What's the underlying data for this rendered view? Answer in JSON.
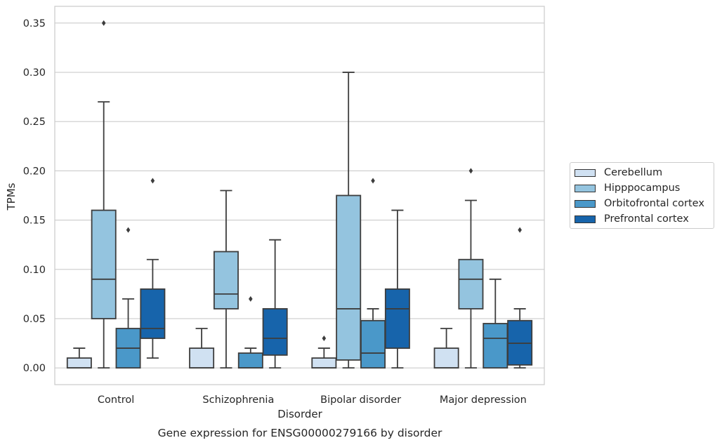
{
  "chart_data": {
    "type": "box",
    "title": "Gene expression for ENSG00000279166 by disorder",
    "xlabel": "Disorder",
    "ylabel": "TPMs",
    "ylim": [
      -0.017,
      0.367
    ],
    "yticks": [
      "0.00",
      "0.05",
      "0.10",
      "0.15",
      "0.20",
      "0.25",
      "0.30",
      "0.35"
    ],
    "grid": "horizontal",
    "legend_position": "right",
    "categories": [
      "Control",
      "Schizophrenia",
      "Bipolar disorder",
      "Major depression"
    ],
    "series": [
      {
        "name": "Cerebellum",
        "color": "#d0e1f2",
        "boxes": [
          {
            "q1": 0.0,
            "median": 0.0,
            "q3": 0.01,
            "whisker_low": 0.0,
            "whisker_high": 0.02,
            "outliers": []
          },
          {
            "q1": 0.0,
            "median": 0.0,
            "q3": 0.02,
            "whisker_low": 0.0,
            "whisker_high": 0.04,
            "outliers": []
          },
          {
            "q1": 0.0,
            "median": 0.0,
            "q3": 0.01,
            "whisker_low": 0.0,
            "whisker_high": 0.02,
            "outliers": [
              0.03
            ]
          },
          {
            "q1": 0.0,
            "median": 0.0,
            "q3": 0.02,
            "whisker_low": 0.0,
            "whisker_high": 0.04,
            "outliers": []
          }
        ]
      },
      {
        "name": "Hipppocampus",
        "color": "#94c4df",
        "boxes": [
          {
            "q1": 0.05,
            "median": 0.09,
            "q3": 0.16,
            "whisker_low": 0.0,
            "whisker_high": 0.27,
            "outliers": [
              0.35
            ]
          },
          {
            "q1": 0.06,
            "median": 0.075,
            "q3": 0.118,
            "whisker_low": 0.0,
            "whisker_high": 0.18,
            "outliers": []
          },
          {
            "q1": 0.008,
            "median": 0.06,
            "q3": 0.175,
            "whisker_low": 0.0,
            "whisker_high": 0.3,
            "outliers": []
          },
          {
            "q1": 0.06,
            "median": 0.09,
            "q3": 0.11,
            "whisker_low": 0.0,
            "whisker_high": 0.17,
            "outliers": [
              0.2
            ]
          }
        ]
      },
      {
        "name": "Orbitofrontal cortex",
        "color": "#4a98c9",
        "boxes": [
          {
            "q1": 0.0,
            "median": 0.02,
            "q3": 0.04,
            "whisker_low": 0.0,
            "whisker_high": 0.07,
            "outliers": [
              0.14
            ]
          },
          {
            "q1": 0.0,
            "median": 0.0,
            "q3": 0.015,
            "whisker_low": 0.0,
            "whisker_high": 0.02,
            "outliers": [
              0.07
            ]
          },
          {
            "q1": 0.0,
            "median": 0.015,
            "q3": 0.048,
            "whisker_low": 0.0,
            "whisker_high": 0.06,
            "outliers": [
              0.19
            ]
          },
          {
            "q1": 0.0,
            "median": 0.03,
            "q3": 0.045,
            "whisker_low": 0.0,
            "whisker_high": 0.09,
            "outliers": []
          }
        ]
      },
      {
        "name": "Prefrontal cortex",
        "color": "#1764ab",
        "boxes": [
          {
            "q1": 0.03,
            "median": 0.04,
            "q3": 0.08,
            "whisker_low": 0.01,
            "whisker_high": 0.11,
            "outliers": [
              0.19
            ]
          },
          {
            "q1": 0.013,
            "median": 0.03,
            "q3": 0.06,
            "whisker_low": 0.0,
            "whisker_high": 0.13,
            "outliers": []
          },
          {
            "q1": 0.02,
            "median": 0.06,
            "q3": 0.08,
            "whisker_low": 0.0,
            "whisker_high": 0.16,
            "outliers": []
          },
          {
            "q1": 0.003,
            "median": 0.025,
            "q3": 0.048,
            "whisker_low": 0.0,
            "whisker_high": 0.06,
            "outliers": [
              0.14
            ]
          }
        ]
      }
    ]
  }
}
